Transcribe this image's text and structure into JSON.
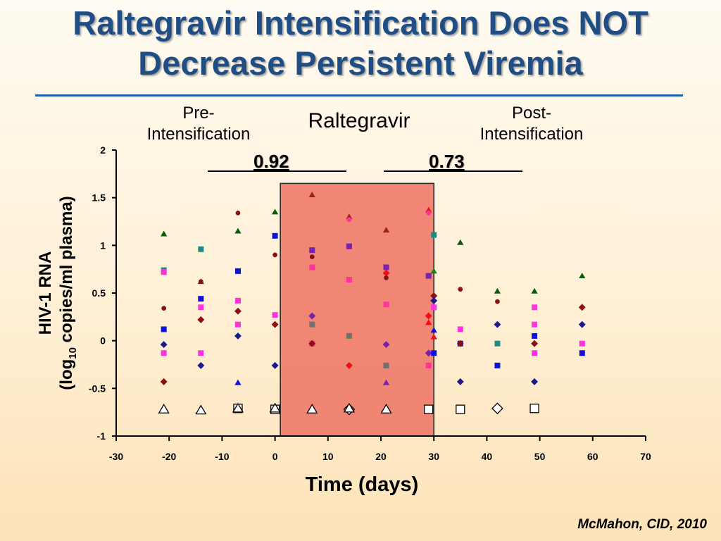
{
  "title_line1": "Raltegravir Intensification Does NOT",
  "title_line2": "Decrease Persistent  Viremia",
  "phases": {
    "pre_line1": "Pre-",
    "pre_line2": "Intensification",
    "during": "Raltegravir",
    "post_line1": "Post-",
    "post_line2": "Intensification"
  },
  "p_values": {
    "pre": "0.92",
    "post": "0.73"
  },
  "citation": "McMahon, CID, 2010",
  "chart_data": {
    "type": "scatter",
    "xlabel": "Time (days)",
    "ylabel_line1": "HIV-1 RNA",
    "ylabel_line2_prefix": "(log",
    "ylabel_line2_sub": "10",
    "ylabel_line2_suffix": " copies/ml plasma)",
    "xlim": [
      -30,
      70
    ],
    "ylim": [
      -1,
      2
    ],
    "x_ticks": [
      -30,
      -20,
      -10,
      0,
      10,
      20,
      30,
      40,
      50,
      60,
      70
    ],
    "y_ticks": [
      -1,
      -0.5,
      0,
      0.5,
      1,
      1.5,
      2
    ],
    "y_tick_labels": [
      "-1",
      "-0.5",
      "0",
      "0.5",
      "1",
      "1.5",
      "2"
    ],
    "shaded_region": {
      "x_start": 1,
      "x_end": 30,
      "y_top": 1.65,
      "color": "#f07a6a"
    },
    "colors": {
      "dark_green": "#0e5a0e",
      "teal": "#1e8a80",
      "blue": "#1010dd",
      "magenta": "#ff33dd",
      "navy": "#1a1a8a",
      "dark_red": "#8b1010",
      "pink": "#ff3399",
      "gray": "#707070",
      "purple": "#7722aa",
      "brown_red": "#9b2515",
      "red": "#ee1111",
      "bright_green": "#118811",
      "dark_blue": "#10107a",
      "white": "#ffffff"
    },
    "points": [
      {
        "x": -21,
        "y": 1.12,
        "shape": "triangle",
        "color": "dark_green"
      },
      {
        "x": -21,
        "y": 0.74,
        "shape": "square",
        "color": "teal"
      },
      {
        "x": -21,
        "y": 0.72,
        "shape": "square",
        "color": "magenta"
      },
      {
        "x": -21,
        "y": 0.34,
        "shape": "circle",
        "color": "dark_red"
      },
      {
        "x": -21,
        "y": 0.12,
        "shape": "square",
        "color": "blue"
      },
      {
        "x": -21,
        "y": -0.04,
        "shape": "diamond",
        "color": "navy"
      },
      {
        "x": -21,
        "y": -0.13,
        "shape": "square",
        "color": "magenta"
      },
      {
        "x": -21,
        "y": -0.43,
        "shape": "diamond",
        "color": "dark_red"
      },
      {
        "x": -14,
        "y": 0.96,
        "shape": "square",
        "color": "teal"
      },
      {
        "x": -14,
        "y": 0.62,
        "shape": "triangle",
        "color": "dark_green"
      },
      {
        "x": -14,
        "y": 0.62,
        "shape": "circle",
        "color": "dark_red"
      },
      {
        "x": -14,
        "y": 0.44,
        "shape": "square",
        "color": "blue"
      },
      {
        "x": -14,
        "y": 0.35,
        "shape": "square",
        "color": "magenta"
      },
      {
        "x": -14,
        "y": 0.22,
        "shape": "diamond",
        "color": "dark_red"
      },
      {
        "x": -14,
        "y": -0.13,
        "shape": "square",
        "color": "magenta"
      },
      {
        "x": -14,
        "y": -0.26,
        "shape": "diamond",
        "color": "navy"
      },
      {
        "x": -7,
        "y": 1.34,
        "shape": "circle",
        "color": "dark_red"
      },
      {
        "x": -7,
        "y": 1.15,
        "shape": "triangle",
        "color": "dark_green"
      },
      {
        "x": -7,
        "y": 0.73,
        "shape": "square",
        "color": "blue"
      },
      {
        "x": -7,
        "y": 0.42,
        "shape": "square",
        "color": "magenta"
      },
      {
        "x": -7,
        "y": 0.31,
        "shape": "diamond",
        "color": "dark_red"
      },
      {
        "x": -7,
        "y": 0.17,
        "shape": "square",
        "color": "magenta"
      },
      {
        "x": -7,
        "y": 0.05,
        "shape": "diamond",
        "color": "navy"
      },
      {
        "x": -7,
        "y": -0.44,
        "shape": "triangle",
        "color": "blue"
      },
      {
        "x": 0,
        "y": 1.35,
        "shape": "triangle",
        "color": "dark_green"
      },
      {
        "x": 0,
        "y": 1.1,
        "shape": "square",
        "color": "blue"
      },
      {
        "x": 0,
        "y": 0.9,
        "shape": "circle",
        "color": "dark_red"
      },
      {
        "x": 0,
        "y": 0.27,
        "shape": "square",
        "color": "magenta"
      },
      {
        "x": 0,
        "y": 0.17,
        "shape": "diamond",
        "color": "dark_red"
      },
      {
        "x": 0,
        "y": -0.26,
        "shape": "diamond",
        "color": "navy"
      },
      {
        "x": 7,
        "y": 1.53,
        "shape": "triangle",
        "color": "brown_red"
      },
      {
        "x": 7,
        "y": 0.95,
        "shape": "square",
        "color": "purple"
      },
      {
        "x": 7,
        "y": 0.88,
        "shape": "circle",
        "color": "dark_red"
      },
      {
        "x": 7,
        "y": 0.77,
        "shape": "square",
        "color": "pink"
      },
      {
        "x": 7,
        "y": 0.26,
        "shape": "diamond",
        "color": "purple"
      },
      {
        "x": 7,
        "y": 0.17,
        "shape": "square",
        "color": "gray"
      },
      {
        "x": 7,
        "y": -0.03,
        "shape": "square",
        "color": "pink"
      },
      {
        "x": 7,
        "y": -0.03,
        "shape": "diamond",
        "color": "dark_red"
      },
      {
        "x": 14,
        "y": 1.3,
        "shape": "triangle",
        "color": "brown_red"
      },
      {
        "x": 14,
        "y": 1.27,
        "shape": "circle",
        "color": "pink"
      },
      {
        "x": 14,
        "y": 0.99,
        "shape": "square",
        "color": "purple"
      },
      {
        "x": 14,
        "y": 0.64,
        "shape": "square",
        "color": "pink"
      },
      {
        "x": 14,
        "y": 0.05,
        "shape": "square",
        "color": "gray"
      },
      {
        "x": 14,
        "y": -0.26,
        "shape": "diamond",
        "color": "red"
      },
      {
        "x": 21,
        "y": 1.16,
        "shape": "triangle",
        "color": "brown_red"
      },
      {
        "x": 21,
        "y": 0.77,
        "shape": "square",
        "color": "purple"
      },
      {
        "x": 21,
        "y": 0.71,
        "shape": "diamond",
        "color": "red"
      },
      {
        "x": 21,
        "y": 0.66,
        "shape": "circle",
        "color": "dark_red"
      },
      {
        "x": 21,
        "y": 0.38,
        "shape": "square",
        "color": "pink"
      },
      {
        "x": 21,
        "y": -0.04,
        "shape": "diamond",
        "color": "purple"
      },
      {
        "x": 21,
        "y": -0.26,
        "shape": "square",
        "color": "gray"
      },
      {
        "x": 21,
        "y": -0.44,
        "shape": "triangle",
        "color": "purple"
      },
      {
        "x": 29,
        "y": 1.37,
        "shape": "triangle",
        "color": "red"
      },
      {
        "x": 29,
        "y": 1.34,
        "shape": "circle",
        "color": "pink"
      },
      {
        "x": 29,
        "y": 0.68,
        "shape": "square",
        "color": "purple"
      },
      {
        "x": 29,
        "y": 0.26,
        "shape": "diamond",
        "color": "red"
      },
      {
        "x": 29,
        "y": 0.19,
        "shape": "triangle",
        "color": "red"
      },
      {
        "x": 29,
        "y": -0.13,
        "shape": "diamond",
        "color": "purple"
      },
      {
        "x": 29,
        "y": -0.26,
        "shape": "square",
        "color": "pink"
      },
      {
        "x": 30,
        "y": 1.11,
        "shape": "square",
        "color": "teal"
      },
      {
        "x": 30,
        "y": 0.73,
        "shape": "triangle",
        "color": "bright_green"
      },
      {
        "x": 30,
        "y": 0.47,
        "shape": "diamond",
        "color": "dark_red"
      },
      {
        "x": 30,
        "y": 0.42,
        "shape": "diamond",
        "color": "navy"
      },
      {
        "x": 30,
        "y": 0.35,
        "shape": "square",
        "color": "magenta"
      },
      {
        "x": 30,
        "y": 0.11,
        "shape": "triangle",
        "color": "blue"
      },
      {
        "x": 30,
        "y": 0.04,
        "shape": "triangle",
        "color": "red"
      },
      {
        "x": 30,
        "y": -0.13,
        "shape": "square",
        "color": "blue"
      },
      {
        "x": 35,
        "y": 1.03,
        "shape": "triangle",
        "color": "dark_green"
      },
      {
        "x": 35,
        "y": 0.54,
        "shape": "circle",
        "color": "dark_red"
      },
      {
        "x": 35,
        "y": 0.12,
        "shape": "square",
        "color": "magenta"
      },
      {
        "x": 35,
        "y": -0.03,
        "shape": "square",
        "color": "blue"
      },
      {
        "x": 35,
        "y": -0.03,
        "shape": "diamond",
        "color": "dark_red"
      },
      {
        "x": 35,
        "y": -0.43,
        "shape": "diamond",
        "color": "navy"
      },
      {
        "x": 42,
        "y": 0.52,
        "shape": "triangle",
        "color": "dark_green"
      },
      {
        "x": 42,
        "y": 0.41,
        "shape": "circle",
        "color": "dark_red"
      },
      {
        "x": 42,
        "y": 0.17,
        "shape": "diamond",
        "color": "navy"
      },
      {
        "x": 42,
        "y": -0.03,
        "shape": "square",
        "color": "teal"
      },
      {
        "x": 42,
        "y": -0.26,
        "shape": "square",
        "color": "blue"
      },
      {
        "x": 49,
        "y": 0.52,
        "shape": "triangle",
        "color": "dark_green"
      },
      {
        "x": 49,
        "y": 0.35,
        "shape": "square",
        "color": "magenta"
      },
      {
        "x": 49,
        "y": 0.17,
        "shape": "square",
        "color": "magenta"
      },
      {
        "x": 49,
        "y": 0.05,
        "shape": "square",
        "color": "blue"
      },
      {
        "x": 49,
        "y": -0.03,
        "shape": "diamond",
        "color": "dark_red"
      },
      {
        "x": 49,
        "y": -0.13,
        "shape": "square",
        "color": "magenta"
      },
      {
        "x": 49,
        "y": -0.43,
        "shape": "diamond",
        "color": "navy"
      },
      {
        "x": 58,
        "y": 0.68,
        "shape": "triangle",
        "color": "dark_green"
      },
      {
        "x": 58,
        "y": 0.35,
        "shape": "diamond",
        "color": "dark_red"
      },
      {
        "x": 58,
        "y": 0.17,
        "shape": "diamond",
        "color": "navy"
      },
      {
        "x": 58,
        "y": -0.03,
        "shape": "square",
        "color": "magenta"
      },
      {
        "x": 58,
        "y": -0.13,
        "shape": "square",
        "color": "blue"
      }
    ],
    "lod_points": [
      {
        "x": -21,
        "y": -0.72,
        "shape": "triangle"
      },
      {
        "x": -14,
        "y": -0.73,
        "shape": "triangle"
      },
      {
        "x": -7,
        "y": -0.71,
        "shape": "square"
      },
      {
        "x": -7,
        "y": -0.71,
        "shape": "triangle"
      },
      {
        "x": 0,
        "y": -0.72,
        "shape": "square"
      },
      {
        "x": 0,
        "y": -0.71,
        "shape": "triangle"
      },
      {
        "x": 7,
        "y": -0.72,
        "shape": "triangle"
      },
      {
        "x": 14,
        "y": -0.72,
        "shape": "diamond"
      },
      {
        "x": 14,
        "y": -0.71,
        "shape": "triangle"
      },
      {
        "x": 21,
        "y": -0.72,
        "shape": "triangle"
      },
      {
        "x": 29,
        "y": -0.72,
        "shape": "square"
      },
      {
        "x": 35,
        "y": -0.72,
        "shape": "square"
      },
      {
        "x": 42,
        "y": -0.71,
        "shape": "diamond"
      },
      {
        "x": 49,
        "y": -0.71,
        "shape": "square"
      }
    ]
  }
}
